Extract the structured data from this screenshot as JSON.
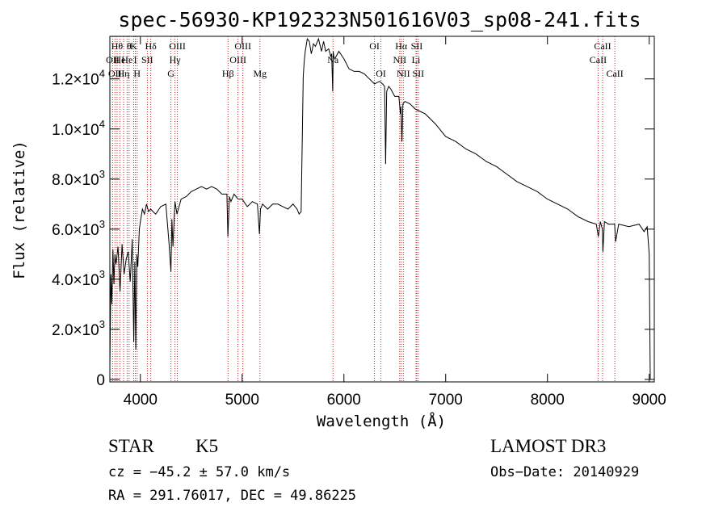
{
  "chart_data": {
    "type": "line",
    "title": "spec-56930-KP192323N501616V03_sp08-241.fits",
    "xlabel": "Wavelength (Å)",
    "ylabel": "Flux (relative)",
    "xlim": [
      3700,
      9050
    ],
    "ylim": [
      -100,
      13700
    ],
    "x_ticks": [
      4000,
      5000,
      6000,
      7000,
      8000,
      9000
    ],
    "y_ticks": [
      {
        "value": 0,
        "base": "0",
        "exp": ""
      },
      {
        "value": 2000,
        "base": "2.0×10",
        "exp": "3"
      },
      {
        "value": 4000,
        "base": "4.0×10",
        "exp": "3"
      },
      {
        "value": 6000,
        "base": "6.0×10",
        "exp": "3"
      },
      {
        "value": 8000,
        "base": "8.0×10",
        "exp": "3"
      },
      {
        "value": 10000,
        "base": "1.0×10",
        "exp": "4"
      },
      {
        "value": 12000,
        "base": "1.2×10",
        "exp": "4"
      }
    ],
    "series": [
      {
        "name": "spectrum",
        "x": [
          3700,
          3710,
          3720,
          3730,
          3740,
          3750,
          3760,
          3780,
          3800,
          3820,
          3840,
          3860,
          3880,
          3900,
          3920,
          3935,
          3945,
          3955,
          3965,
          3975,
          3990,
          4000,
          4020,
          4040,
          4060,
          4080,
          4100,
          4150,
          4200,
          4250,
          4280,
          4300,
          4310,
          4320,
          4340,
          4360,
          4400,
          4450,
          4500,
          4550,
          4600,
          4650,
          4700,
          4750,
          4800,
          4850,
          4860,
          4875,
          4890,
          4920,
          4960,
          5000,
          5050,
          5100,
          5150,
          5170,
          5180,
          5200,
          5250,
          5300,
          5350,
          5400,
          5450,
          5500,
          5540,
          5560,
          5580,
          5600,
          5610,
          5620,
          5640,
          5660,
          5680,
          5700,
          5720,
          5750,
          5780,
          5800,
          5820,
          5850,
          5870,
          5880,
          5890,
          5895,
          5900,
          5910,
          5950,
          6000,
          6050,
          6100,
          6150,
          6200,
          6250,
          6300,
          6350,
          6380,
          6400,
          6410,
          6420,
          6440,
          6460,
          6500,
          6540,
          6555,
          6560,
          6570,
          6580,
          6600,
          6650,
          6700,
          6750,
          6800,
          6900,
          7000,
          7100,
          7200,
          7300,
          7400,
          7500,
          7600,
          7700,
          7800,
          7900,
          8000,
          8100,
          8200,
          8300,
          8400,
          8480,
          8500,
          8520,
          8540,
          8545,
          8560,
          8600,
          8640,
          8660,
          8670,
          8700,
          8800,
          8900,
          8950,
          8980,
          9000,
          9010
        ],
        "y": [
          500,
          4200,
          3000,
          5200,
          3800,
          5000,
          4600,
          5300,
          3500,
          5400,
          4200,
          4800,
          5100,
          3900,
          5600,
          1500,
          4700,
          1200,
          5000,
          4500,
          6000,
          6300,
          6800,
          6600,
          7000,
          6700,
          6800,
          6600,
          6900,
          7000,
          5500,
          4300,
          6400,
          5300,
          7100,
          6600,
          7200,
          7300,
          7500,
          7600,
          7700,
          7600,
          7700,
          7600,
          7400,
          7400,
          5700,
          7300,
          7100,
          7400,
          7200,
          7200,
          6900,
          7100,
          7000,
          5800,
          6800,
          7000,
          6800,
          7000,
          7000,
          6900,
          6800,
          7000,
          6800,
          6600,
          6700,
          12100,
          12700,
          13100,
          13600,
          13500,
          13000,
          13400,
          13300,
          13600,
          13100,
          13500,
          13100,
          13200,
          12900,
          13000,
          11500,
          13100,
          12900,
          12800,
          13100,
          12800,
          12400,
          12300,
          12300,
          12200,
          12000,
          11800,
          11900,
          11800,
          11700,
          8600,
          11500,
          11700,
          11600,
          11300,
          11300,
          10600,
          10900,
          9500,
          11000,
          11100,
          11000,
          10800,
          10700,
          10600,
          10200,
          9700,
          9500,
          9200,
          9000,
          8700,
          8500,
          8200,
          7900,
          7700,
          7500,
          7200,
          7000,
          6800,
          6500,
          6300,
          6200,
          5700,
          6300,
          6000,
          5100,
          6300,
          6200,
          6200,
          6200,
          5500,
          6200,
          6100,
          6200,
          5900,
          6100,
          5000,
          0
        ]
      }
    ],
    "lines": [
      {
        "wl": 3727,
        "label": "OII",
        "row": 2
      },
      {
        "wl": 3750,
        "label": "OII",
        "row": 3
      },
      {
        "wl": 3771,
        "label": "Hθ",
        "row": 1
      },
      {
        "wl": 3798,
        "label": "He",
        "row": 2
      },
      {
        "wl": 3835,
        "label": "Hη",
        "row": 3
      },
      {
        "wl": 3869,
        "label": "He",
        "row": 2
      },
      {
        "wl": 3889,
        "label": "θ",
        "row": 1
      },
      {
        "wl": 3934,
        "label": "K",
        "row": 1
      },
      {
        "wl": 3950,
        "label": "I",
        "row": 2
      },
      {
        "wl": 3968,
        "label": "H",
        "row": 3
      },
      {
        "wl": 4068,
        "label": "SII",
        "row": 2
      },
      {
        "wl": 4102,
        "label": "Hδ",
        "row": 1
      },
      {
        "wl": 4300,
        "label": "G",
        "row": 3
      },
      {
        "wl": 4340,
        "label": "Hγ",
        "row": 2
      },
      {
        "wl": 4363,
        "label": "OIII",
        "row": 1
      },
      {
        "wl": 4861,
        "label": "Hβ",
        "row": 3
      },
      {
        "wl": 4959,
        "label": "OIII",
        "row": 2
      },
      {
        "wl": 5007,
        "label": "OIII",
        "row": 1
      },
      {
        "wl": 5175,
        "label": "Mg",
        "row": 3
      },
      {
        "wl": 5893,
        "label": "Na",
        "row": 2
      },
      {
        "wl": 6300,
        "label": "OI",
        "row": 1
      },
      {
        "wl": 6364,
        "label": "OI",
        "row": 3
      },
      {
        "wl": 6548,
        "label": "NII",
        "row": 2
      },
      {
        "wl": 6563,
        "label": "Hα",
        "row": 1
      },
      {
        "wl": 6584,
        "label": "NII",
        "row": 3
      },
      {
        "wl": 6708,
        "label": "Li",
        "row": 2
      },
      {
        "wl": 6716,
        "label": "SII",
        "row": 1
      },
      {
        "wl": 6731,
        "label": "SII",
        "row": 3
      },
      {
        "wl": 8498,
        "label": "CaII",
        "row": 2
      },
      {
        "wl": 8542,
        "label": "CaII",
        "row": 1
      },
      {
        "wl": 8662,
        "label": "CaII",
        "row": 3
      }
    ]
  },
  "info": {
    "object_class": "STAR",
    "subclass": "K5",
    "survey": "LAMOST DR3",
    "redshift": "cz = −45.2 ± 57.0 km/s",
    "obs_date": "Obs−Date: 20140929",
    "coords": "RA = 291.76017, DEC =  49.86225"
  },
  "colors": {
    "spectrum": "#000000",
    "line_marker": "#cc2222",
    "background": "#ffffff"
  }
}
